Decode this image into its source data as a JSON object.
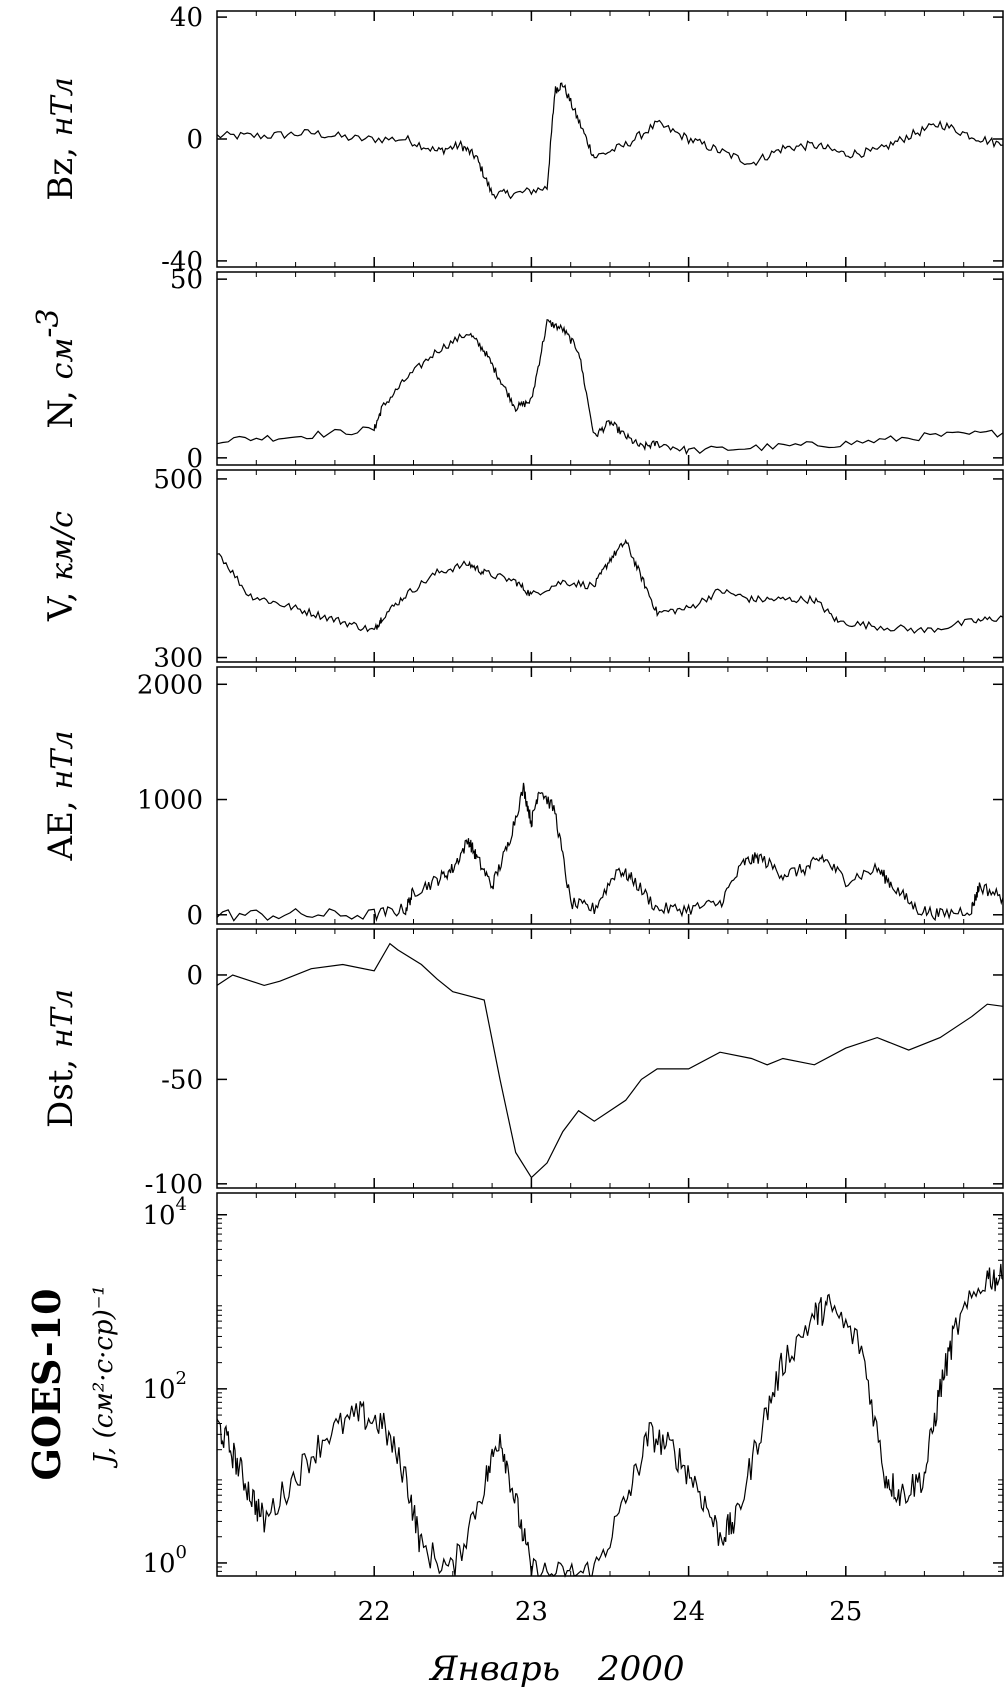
{
  "chart_data": {
    "type": "line",
    "x_ticks": [
      22,
      23,
      24,
      25
    ],
    "x_range": [
      21,
      26
    ],
    "x_label": "Январь",
    "x_label_year": "2000",
    "panels": [
      {
        "id": "bz",
        "ylabel_main": "Bz,",
        "ylabel_unit": "нТл",
        "ylim": [
          -42,
          42
        ],
        "y_ticks": [
          40,
          0,
          -40
        ],
        "y_tick_labels": [
          "40",
          "0",
          "-40"
        ],
        "log": false,
        "series": {
          "x": [
            21.0,
            21.3,
            21.6,
            21.9,
            22.2,
            22.4,
            22.55,
            22.65,
            22.75,
            22.9,
            23.1,
            23.15,
            23.2,
            23.3,
            23.4,
            23.6,
            23.8,
            24.0,
            24.2,
            24.4,
            24.6,
            24.8,
            25.0,
            25.2,
            25.4,
            25.6,
            25.8,
            26.0
          ],
          "y": [
            1,
            1,
            2,
            0,
            0,
            -4,
            -2,
            -6,
            -18,
            -18,
            -16,
            16,
            18,
            6,
            -6,
            -2,
            5,
            0,
            -4,
            -8,
            -3,
            -2,
            -5,
            -4,
            1,
            5,
            1,
            -2
          ]
        }
      },
      {
        "id": "n",
        "ylabel_main": "N,",
        "ylabel_unit": "см",
        "ylabel_sup": "-3",
        "ylim": [
          -2,
          52
        ],
        "y_ticks": [
          50,
          0
        ],
        "y_tick_labels": [
          "50",
          "0"
        ],
        "log": false,
        "series": {
          "x": [
            21.0,
            21.5,
            22.0,
            22.05,
            22.2,
            22.4,
            22.6,
            22.7,
            22.8,
            22.9,
            23.0,
            23.1,
            23.2,
            23.3,
            23.4,
            23.5,
            23.6,
            23.7,
            23.8,
            24.0,
            24.5,
            25.0,
            25.5,
            26.0
          ],
          "y": [
            5,
            6,
            8,
            14,
            22,
            30,
            35,
            30,
            22,
            14,
            16,
            38,
            36,
            30,
            6,
            10,
            6,
            3,
            4,
            2,
            3,
            4,
            6,
            7
          ]
        }
      },
      {
        "id": "v",
        "ylabel_main": "V,",
        "ylabel_unit": "км/с",
        "ylim": [
          295,
          510
        ],
        "y_ticks": [
          500,
          300
        ],
        "y_tick_labels": [
          "500",
          "300"
        ],
        "log": false,
        "series": {
          "x": [
            21.0,
            21.2,
            21.4,
            21.6,
            21.8,
            22.0,
            22.05,
            22.2,
            22.4,
            22.6,
            22.7,
            22.9,
            23.0,
            23.2,
            23.4,
            23.5,
            23.6,
            23.7,
            23.8,
            24.0,
            24.2,
            24.4,
            24.6,
            24.8,
            24.95,
            25.2,
            25.5,
            25.8,
            26.0
          ],
          "y": [
            420,
            370,
            360,
            350,
            340,
            330,
            345,
            370,
            395,
            405,
            395,
            385,
            370,
            385,
            380,
            410,
            430,
            390,
            350,
            355,
            375,
            365,
            365,
            365,
            340,
            335,
            330,
            340,
            345
          ]
        }
      },
      {
        "id": "ae",
        "ylabel_main": "AE,",
        "ylabel_unit": "нТл",
        "ylim": [
          -80,
          2150
        ],
        "y_ticks": [
          2000,
          1000,
          0
        ],
        "y_tick_labels": [
          "2000",
          "1000",
          "0"
        ],
        "log": false,
        "series": {
          "x": [
            21.0,
            21.5,
            22.0,
            22.2,
            22.25,
            22.4,
            22.5,
            22.6,
            22.65,
            22.75,
            22.85,
            22.95,
            23.0,
            23.05,
            23.15,
            23.25,
            23.4,
            23.55,
            23.65,
            23.8,
            24.0,
            24.2,
            24.35,
            24.45,
            24.6,
            24.75,
            24.85,
            25.0,
            25.2,
            25.3,
            25.45,
            25.6,
            25.8,
            25.85,
            26.0
          ],
          "y": [
            0,
            0,
            0,
            50,
            200,
            300,
            400,
            650,
            500,
            250,
            600,
            1100,
            800,
            1100,
            900,
            100,
            50,
            400,
            300,
            50,
            50,
            100,
            450,
            500,
            350,
            400,
            500,
            300,
            400,
            250,
            50,
            0,
            50,
            250,
            150
          ]
        }
      },
      {
        "id": "dst",
        "ylabel_main": "Dst,",
        "ylabel_unit": "нТл",
        "ylim": [
          -102,
          22
        ],
        "y_ticks": [
          0,
          -50,
          -100
        ],
        "y_tick_labels": [
          "0",
          "-50",
          "-100"
        ],
        "log": false,
        "series": {
          "x": [
            21.0,
            21.1,
            21.3,
            21.4,
            21.6,
            21.8,
            22.0,
            22.1,
            22.15,
            22.3,
            22.4,
            22.5,
            22.6,
            22.7,
            22.8,
            22.9,
            23.0,
            23.1,
            23.2,
            23.3,
            23.4,
            23.5,
            23.6,
            23.7,
            23.8,
            24.0,
            24.2,
            24.4,
            24.5,
            24.6,
            24.8,
            25.0,
            25.2,
            25.4,
            25.6,
            25.8,
            25.9,
            26.0
          ],
          "y": [
            -5,
            0,
            -5,
            -3,
            3,
            5,
            2,
            15,
            12,
            5,
            -2,
            -8,
            -10,
            -12,
            -50,
            -85,
            -97,
            -90,
            -75,
            -65,
            -70,
            -65,
            -60,
            -50,
            -45,
            -45,
            -37,
            -40,
            -43,
            -40,
            -43,
            -35,
            -30,
            -36,
            -30,
            -20,
            -14,
            -15
          ]
        }
      },
      {
        "id": "goes",
        "ylabel_main": "GOES-10",
        "ylabel_unit": "J, (см²·с·ср)⁻¹",
        "ylim_log": [
          -0.15,
          4.25
        ],
        "y_ticks": [
          4,
          2,
          0
        ],
        "y_tick_labels": [
          "10",
          "10",
          "10"
        ],
        "y_tick_exps": [
          "4",
          "2",
          "0"
        ],
        "log": true,
        "series": {
          "x": [
            21.0,
            21.1,
            21.2,
            21.3,
            21.5,
            21.7,
            21.9,
            22.05,
            22.2,
            22.3,
            22.5,
            22.7,
            22.8,
            22.9,
            23.0,
            23.2,
            23.4,
            23.6,
            23.75,
            23.9,
            24.05,
            24.2,
            24.3,
            24.45,
            24.6,
            24.8,
            24.9,
            25.1,
            25.25,
            25.35,
            25.5,
            25.6,
            25.7,
            25.9,
            26.0
          ],
          "y": [
            40,
            18,
            7,
            3,
            10,
            30,
            50,
            40,
            10,
            1.5,
            0.8,
            8,
            30,
            5,
            0.8,
            0.7,
            0.8,
            5,
            30,
            20,
            8,
            2,
            3,
            30,
            200,
            700,
            900,
            300,
            10,
            6,
            10,
            100,
            500,
            2000,
            1800
          ]
        }
      }
    ]
  }
}
